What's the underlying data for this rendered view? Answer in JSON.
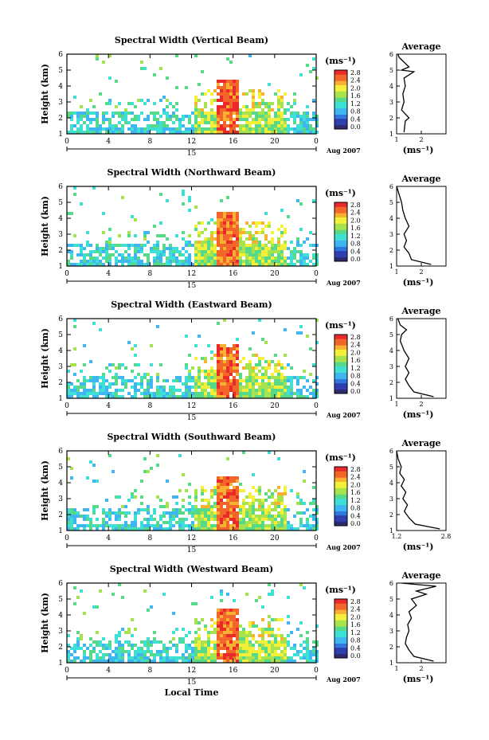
{
  "figure": {
    "xlabel": "Local Time",
    "colorbar_unit": "(ms⁻¹)",
    "colorbar_ticks": [
      "0.0",
      "0.4",
      "0.8",
      "1.2",
      "1.6",
      "2.0",
      "2.4",
      "2.8"
    ],
    "colormap": [
      "#2e2a6e",
      "#2f3fb0",
      "#2f78e0",
      "#3fb6ef",
      "#3ee0d6",
      "#57d98a",
      "#a6e34e",
      "#f3ef3a",
      "#f8b030",
      "#f2662a",
      "#ea2a2a"
    ],
    "average_title": "Average",
    "average_unit": "(ms⁻¹)"
  },
  "chart_data": [
    {
      "type": "heatmap",
      "title": "Spectral Width (Vertical Beam)",
      "ylabel": "Height (km)",
      "xlabel": "",
      "x_ticks": [
        "0",
        "4",
        "8",
        "12",
        "16",
        "20",
        "0"
      ],
      "y_ticks": [
        "1",
        "2",
        "3",
        "4",
        "5",
        "6"
      ],
      "xlim": [
        0,
        24
      ],
      "ylim": [
        1,
        6
      ],
      "date_label": "15",
      "month_label": "Aug 2007",
      "colorbar_range": [
        0,
        2.8
      ],
      "average": {
        "type": "line",
        "title": "Average",
        "xlim": [
          1,
          3
        ],
        "x_ticks": [
          "1",
          "2"
        ],
        "y_ticks": [
          "1",
          "2",
          "3",
          "4",
          "5",
          "6"
        ],
        "profile": [
          [
            1.1,
            1.3
          ],
          [
            1.8,
            1.35
          ],
          [
            2.0,
            1.5
          ],
          [
            2.5,
            1.2
          ],
          [
            3.0,
            1.3
          ],
          [
            3.5,
            1.25
          ],
          [
            4.0,
            1.35
          ],
          [
            4.5,
            1.3
          ],
          [
            4.9,
            1.7
          ],
          [
            5.0,
            1.2
          ],
          [
            5.2,
            1.5
          ],
          [
            5.5,
            1.3
          ],
          [
            5.8,
            1.1
          ],
          [
            6.0,
            1.05
          ]
        ]
      }
    },
    {
      "type": "heatmap",
      "title": "Spectral Width (Northward Beam)",
      "ylabel": "Height (km)",
      "xlabel": "",
      "x_ticks": [
        "0",
        "4",
        "8",
        "12",
        "16",
        "20",
        "0"
      ],
      "y_ticks": [
        "1",
        "2",
        "3",
        "4",
        "5",
        "6"
      ],
      "xlim": [
        0,
        24
      ],
      "ylim": [
        1,
        6
      ],
      "date_label": "15",
      "month_label": "Aug 2007",
      "colorbar_range": [
        0,
        2.8
      ],
      "average": {
        "type": "line",
        "title": "Average",
        "xlim": [
          1,
          3
        ],
        "x_ticks": [
          "1",
          "2"
        ],
        "y_ticks": [
          "1",
          "2",
          "3",
          "4",
          "5",
          "6"
        ],
        "profile": [
          [
            1.1,
            2.4
          ],
          [
            1.4,
            1.6
          ],
          [
            1.8,
            1.5
          ],
          [
            2.2,
            1.3
          ],
          [
            2.6,
            1.4
          ],
          [
            3.0,
            1.3
          ],
          [
            3.5,
            1.5
          ],
          [
            4.0,
            1.35
          ],
          [
            4.5,
            1.25
          ],
          [
            5.0,
            1.2
          ],
          [
            5.5,
            1.1
          ],
          [
            6.0,
            1.0
          ]
        ]
      }
    },
    {
      "type": "heatmap",
      "title": "Spectral Width (Eastward Beam)",
      "ylabel": "Height (km)",
      "xlabel": "",
      "x_ticks": [
        "0",
        "4",
        "8",
        "12",
        "16",
        "20",
        "0"
      ],
      "y_ticks": [
        "1",
        "2",
        "3",
        "4",
        "5",
        "6"
      ],
      "xlim": [
        0,
        24
      ],
      "ylim": [
        1,
        6
      ],
      "date_label": "15",
      "month_label": "Aug 2007",
      "colorbar_range": [
        0,
        2.8
      ],
      "average": {
        "type": "line",
        "title": "Average",
        "xlim": [
          1,
          3
        ],
        "x_ticks": [
          "1",
          "2"
        ],
        "y_ticks": [
          "1",
          "2",
          "3",
          "4",
          "5",
          "6"
        ],
        "profile": [
          [
            1.1,
            2.5
          ],
          [
            1.4,
            1.7
          ],
          [
            1.8,
            1.5
          ],
          [
            2.2,
            1.35
          ],
          [
            2.6,
            1.5
          ],
          [
            3.0,
            1.35
          ],
          [
            3.5,
            1.5
          ],
          [
            4.0,
            1.3
          ],
          [
            4.6,
            1.15
          ],
          [
            5.0,
            1.2
          ],
          [
            5.3,
            1.4
          ],
          [
            5.6,
            1.15
          ],
          [
            6.0,
            1.05
          ]
        ]
      }
    },
    {
      "type": "heatmap",
      "title": "Spectral Width (Southward Beam)",
      "ylabel": "Height (km)",
      "xlabel": "",
      "x_ticks": [
        "0",
        "4",
        "8",
        "12",
        "16",
        "20",
        "0"
      ],
      "y_ticks": [
        "1",
        "2",
        "3",
        "4",
        "5",
        "6"
      ],
      "xlim": [
        0,
        24
      ],
      "ylim": [
        1,
        6
      ],
      "date_label": "15",
      "month_label": "Aug 2007",
      "colorbar_range": [
        0,
        2.8
      ],
      "average": {
        "type": "line",
        "title": "Average",
        "xlim": [
          1.2,
          2.8
        ],
        "x_ticks": [
          "1.2",
          "2.8"
        ],
        "y_ticks": [
          "1",
          "2",
          "3",
          "4",
          "5",
          "6"
        ],
        "profile": [
          [
            1.1,
            2.6
          ],
          [
            1.4,
            1.8
          ],
          [
            1.8,
            1.6
          ],
          [
            2.2,
            1.45
          ],
          [
            2.6,
            1.55
          ],
          [
            3.0,
            1.4
          ],
          [
            3.4,
            1.5
          ],
          [
            3.8,
            1.35
          ],
          [
            4.2,
            1.45
          ],
          [
            4.6,
            1.3
          ],
          [
            5.0,
            1.35
          ],
          [
            5.5,
            1.25
          ],
          [
            6.0,
            1.2
          ]
        ]
      }
    },
    {
      "type": "heatmap",
      "title": "Spectral Width (Westward Beam)",
      "ylabel": "Height (km)",
      "xlabel": "Local Time",
      "x_ticks": [
        "0",
        "4",
        "8",
        "12",
        "16",
        "20",
        "0"
      ],
      "y_ticks": [
        "1",
        "2",
        "3",
        "4",
        "5",
        "6"
      ],
      "xlim": [
        0,
        24
      ],
      "ylim": [
        1,
        6
      ],
      "date_label": "15",
      "month_label": "Aug 2007",
      "colorbar_range": [
        0,
        2.8
      ],
      "average": {
        "type": "line",
        "title": "Average",
        "xlim": [
          1,
          3
        ],
        "x_ticks": [
          "1",
          "2"
        ],
        "y_ticks": [
          "1",
          "2",
          "3",
          "4",
          "5",
          "6"
        ],
        "profile": [
          [
            1.1,
            2.5
          ],
          [
            1.4,
            1.7
          ],
          [
            1.8,
            1.5
          ],
          [
            2.2,
            1.35
          ],
          [
            2.6,
            1.4
          ],
          [
            3.0,
            1.5
          ],
          [
            3.4,
            1.45
          ],
          [
            3.8,
            1.6
          ],
          [
            4.2,
            1.5
          ],
          [
            4.6,
            1.8
          ],
          [
            5.0,
            1.6
          ],
          [
            5.3,
            2.2
          ],
          [
            5.5,
            1.8
          ],
          [
            5.8,
            2.6
          ],
          [
            6.0,
            1.2
          ]
        ]
      }
    }
  ]
}
